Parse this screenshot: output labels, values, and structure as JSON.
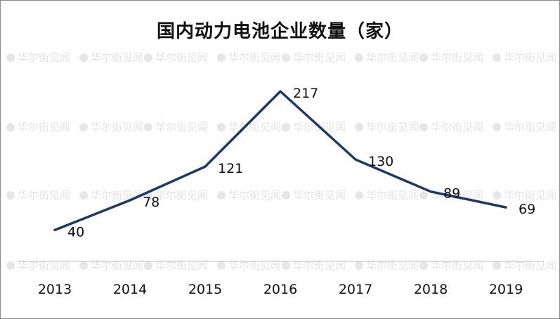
{
  "watermark": "华尔街见闻",
  "chart_data": {
    "type": "line",
    "title": "国内动力电池企业数量（家）",
    "categories": [
      "2013",
      "2014",
      "2015",
      "2016",
      "2017",
      "2018",
      "2019"
    ],
    "series": [
      {
        "values": [
          40,
          78,
          121,
          217,
          130,
          89,
          69
        ]
      }
    ],
    "ylim": [
      0,
      240
    ],
    "xlabel": "",
    "ylabel": "",
    "grid": false,
    "legend": "none",
    "line_color": "#1f3864",
    "axis_color": "#bfbfbf"
  }
}
